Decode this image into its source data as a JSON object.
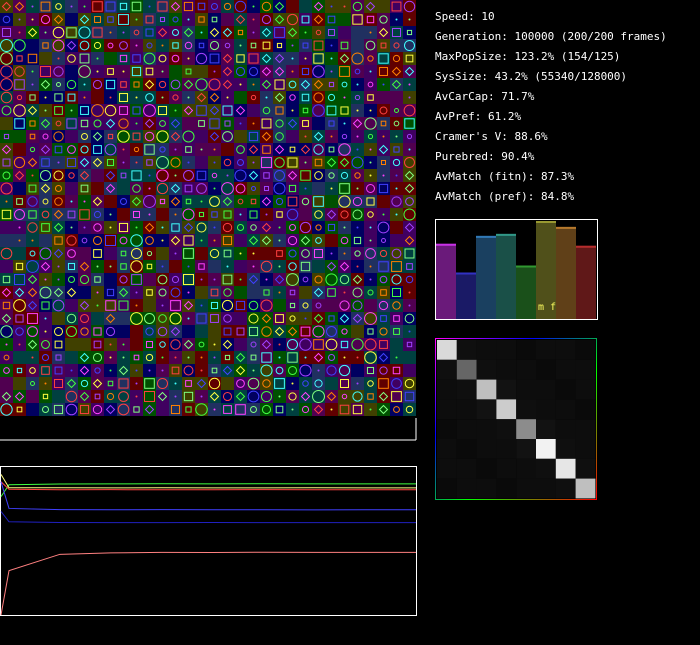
{
  "stats": [
    {
      "label": "Speed: 10"
    },
    {
      "label": "Generation: 100000 (200/200 frames)"
    },
    {
      "label": "MaxPopSize: 123.2% (154/125)"
    },
    {
      "label": "SysSize: 43.2% (55340/128000)"
    },
    {
      "label": "AvCarCap: 71.7%"
    },
    {
      "label": "AvPref: 61.2%"
    },
    {
      "label": "Cramer's V: 88.6%"
    },
    {
      "label": "Purebred: 90.4%"
    },
    {
      "label": "AvMatch (fitn): 87.3%"
    },
    {
      "label": "AvMatch (pref): 84.8%"
    }
  ],
  "bar_panel": {
    "label": "m f",
    "ylim": [
      0,
      100
    ],
    "values": [
      76,
      47,
      84,
      86,
      54,
      99,
      93,
      74
    ],
    "colors": [
      "#6a1a7a",
      "#1a1a66",
      "#1a4060",
      "#1a5048",
      "#1a501a",
      "#50501a",
      "#604018",
      "#601818"
    ]
  },
  "matrix": {
    "vlim": [
      0,
      1
    ],
    "values": [
      [
        0.85,
        0.06,
        0.05,
        0.05,
        0.04,
        0.05,
        0.05,
        0.04
      ],
      [
        0.06,
        0.4,
        0.06,
        0.05,
        0.05,
        0.04,
        0.05,
        0.05
      ],
      [
        0.05,
        0.06,
        0.75,
        0.07,
        0.05,
        0.05,
        0.04,
        0.05
      ],
      [
        0.05,
        0.05,
        0.07,
        0.8,
        0.06,
        0.05,
        0.05,
        0.04
      ],
      [
        0.04,
        0.05,
        0.05,
        0.06,
        0.55,
        0.07,
        0.05,
        0.05
      ],
      [
        0.05,
        0.04,
        0.05,
        0.05,
        0.07,
        0.95,
        0.06,
        0.05
      ],
      [
        0.05,
        0.05,
        0.04,
        0.05,
        0.05,
        0.06,
        0.9,
        0.06
      ],
      [
        0.04,
        0.05,
        0.05,
        0.04,
        0.05,
        0.05,
        0.06,
        0.75
      ]
    ]
  },
  "history": {
    "ylim": [
      0,
      1
    ],
    "series": [
      {
        "color": "#40ff40",
        "values": [
          0.8,
          0.88,
          0.885,
          0.886,
          0.887,
          0.886,
          0.887,
          0.886,
          0.886,
          0.886
        ]
      },
      {
        "color": "#ffff80",
        "values": [
          0.95,
          0.86,
          0.86,
          0.859,
          0.86,
          0.859,
          0.859,
          0.86,
          0.859,
          0.859
        ]
      },
      {
        "color": "#ff4040",
        "values": [
          0.9,
          0.85,
          0.846,
          0.847,
          0.846,
          0.846,
          0.847,
          0.846,
          0.846,
          0.846
        ]
      },
      {
        "color": "#4040ff",
        "values": [
          0.9,
          0.72,
          0.712,
          0.711,
          0.712,
          0.711,
          0.711,
          0.71,
          0.711,
          0.711
        ]
      },
      {
        "color": "#2020c0",
        "values": [
          0.7,
          0.63,
          0.625,
          0.624,
          0.624,
          0.625,
          0.624,
          0.624,
          0.624,
          0.624
        ]
      },
      {
        "color": "#ff8080",
        "values": [
          0.0,
          0.3,
          0.41,
          0.42,
          0.423,
          0.422,
          0.424,
          0.423,
          0.423,
          0.423
        ]
      }
    ]
  }
}
